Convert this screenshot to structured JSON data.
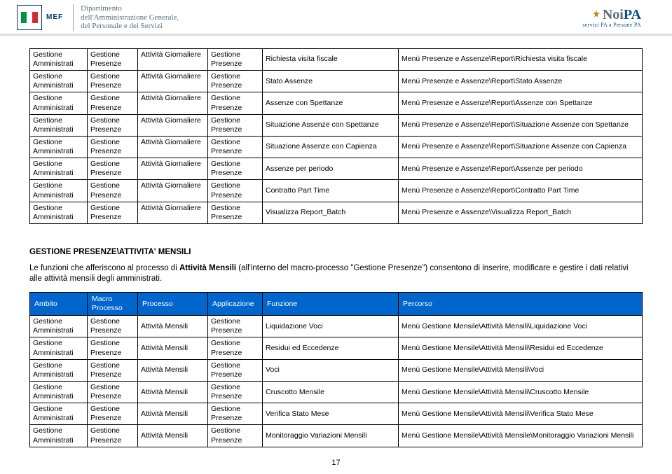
{
  "header": {
    "mef": "MEF",
    "dept_line1": "Dipartimento",
    "dept_line2": "dell'Amministrazione Generale,",
    "dept_line3": "del Personale e dei Servizi",
    "noipa_prefix": "Noi",
    "noipa_suffix": "PA",
    "noipa_sub": "servizi PA a Persone PA",
    "flag_colors": [
      "#009246",
      "#ffffff",
      "#ce2b37"
    ]
  },
  "table1": {
    "rows": [
      {
        "c1": "Gestione Amministrati",
        "c2": "Gestione Presenze",
        "c3": "Attività Giornaliere",
        "c4": "Gestione Presenze",
        "c5": "Richiesta visita fiscale",
        "c6": "Menù Presenze e Assenze\\Report\\Richiesta visita fiscale"
      },
      {
        "c1": "Gestione Amministrati",
        "c2": "Gestione Presenze",
        "c3": "Attività Giornaliere",
        "c4": "Gestione Presenze",
        "c5": "Stato Assenze",
        "c6": "Menù Presenze e Assenze\\Report\\Stato Assenze"
      },
      {
        "c1": "Gestione Amministrati",
        "c2": "Gestione Presenze",
        "c3": "Attività Giornaliere",
        "c4": "Gestione Presenze",
        "c5": "Assenze con Spettanze",
        "c6": "Menù Presenze e Assenze\\Report\\Assenze con Spettanze"
      },
      {
        "c1": "Gestione Amministrati",
        "c2": "Gestione Presenze",
        "c3": "Attività Giornaliere",
        "c4": "Gestione Presenze",
        "c5": "Situazione Assenze con Spettanze",
        "c6": "Menù Presenze e Assenze\\Report\\Situazione Assenze con Spettanze"
      },
      {
        "c1": "Gestione Amministrati",
        "c2": "Gestione Presenze",
        "c3": "Attività Giornaliere",
        "c4": "Gestione Presenze",
        "c5": "Situazione Assenze con Capienza",
        "c6": "Menù Presenze e Assenze\\Report\\Situazione Assenze con Capienza"
      },
      {
        "c1": "Gestione Amministrati",
        "c2": "Gestione Presenze",
        "c3": "Attività Giornaliere",
        "c4": "Gestione Presenze",
        "c5": "Assenze per periodo",
        "c6": "Menù Presenze e Assenze\\Report\\Assenze per periodo"
      },
      {
        "c1": "Gestione Amministrati",
        "c2": "Gestione Presenze",
        "c3": "Attività Giornaliere",
        "c4": "Gestione Presenze",
        "c5": "Contratto Part Time",
        "c6": "Menù Presenze e Assenze\\Report\\Contratto Part Time"
      },
      {
        "c1": "Gestione Amministrati",
        "c2": "Gestione Presenze",
        "c3": "Attività Giornaliere",
        "c4": "Gestione Presenze",
        "c5": "Visualizza Report_Batch",
        "c6": "Menù Presenze e Assenze\\Visualizza Report_Batch"
      }
    ]
  },
  "section": {
    "title": "GESTIONE PRESENZE\\ATTIVITA' MENSILI",
    "desc_p1": "Le funzioni che afferiscono al processo di ",
    "desc_bold": "Attività Mensili",
    "desc_p2": " (all'interno del macro-processo \"Gestione Presenze\") consentono di inserire, modificare e gestire i dati relativi alle attività mensili degli amministrati."
  },
  "table2": {
    "headers": {
      "ambito": "Ambito",
      "macro": "Macro Processo",
      "processo": "Processo",
      "applicazione": "Applicazione",
      "funzione": "Funzione",
      "percorso": "Percorso"
    },
    "rows": [
      {
        "c1": "Gestione Amministrati",
        "c2": "Gestione Presenze",
        "c3": "Attività Mensili",
        "c4": "Gestione Presenze",
        "c5": "Liquidazione Voci",
        "c6": "Menù Gestione Mensile\\Attività Mensili\\Liquidazione Voci"
      },
      {
        "c1": "Gestione Amministrati",
        "c2": "Gestione Presenze",
        "c3": "Attività Mensili",
        "c4": "Gestione Presenze",
        "c5": "Residui ed Eccedenze",
        "c6": "Menù Gestione Mensile\\Attività Mensili\\Residui ed Eccedenze"
      },
      {
        "c1": "Gestione Amministrati",
        "c2": "Gestione Presenze",
        "c3": "Attività Mensili",
        "c4": "Gestione Presenze",
        "c5": "Voci",
        "c6": "Menù Gestione Mensile\\Attività Mensili\\Voci"
      },
      {
        "c1": "Gestione Amministrati",
        "c2": "Gestione Presenze",
        "c3": "Attività Mensili",
        "c4": "Gestione Presenze",
        "c5": "Cruscotto Mensile",
        "c6": "Menù Gestione Mensile\\Attività Mensili\\Cruscotto Mensile"
      },
      {
        "c1": "Gestione Amministrati",
        "c2": "Gestione Presenze",
        "c3": "Attività Mensili",
        "c4": "Gestione Presenze",
        "c5": "Verifica Stato Mese",
        "c6": "Menù Gestione Mensile\\Attività Mensili\\Verifica Stato Mese"
      },
      {
        "c1": "Gestione Amministrati",
        "c2": "Gestione Presenze",
        "c3": "Attività Mensili",
        "c4": "Gestione Presenze",
        "c5": "Monitoraggio Variazioni Mensili",
        "c6": "Menù Gestione Mensile\\Attività Mensile\\Monitoraggio Variazioni Mensili"
      }
    ]
  },
  "page_number": "17",
  "colors": {
    "header_bg": "#0066cc",
    "header_text": "#ffffff",
    "border": "#000000",
    "rule": "#d9dee2"
  }
}
